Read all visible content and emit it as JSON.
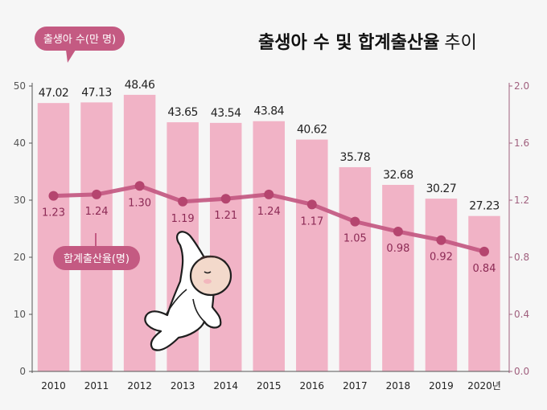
{
  "chart_data": {
    "type": "bar",
    "title": "출생아 수 및 합계출산율",
    "title_suffix": "추이",
    "categories": [
      "2010",
      "2011",
      "2012",
      "2013",
      "2014",
      "2015",
      "2016",
      "2017",
      "2018",
      "2019",
      "2020년"
    ],
    "series": [
      {
        "name": "출생아 수(만 명)",
        "type": "bar",
        "axis": "left",
        "values": [
          47.02,
          47.13,
          48.46,
          43.65,
          43.54,
          43.84,
          40.62,
          35.78,
          32.68,
          30.27,
          27.23
        ],
        "labels": [
          "47.02",
          "47.13",
          "48.46",
          "43.65",
          "43.54",
          "43.84",
          "40.62",
          "35.78",
          "32.68",
          "30.27",
          "27.23"
        ]
      },
      {
        "name": "합계출산율(명)",
        "type": "line",
        "axis": "right",
        "values": [
          1.23,
          1.24,
          1.3,
          1.19,
          1.21,
          1.24,
          1.17,
          1.05,
          0.98,
          0.92,
          0.84
        ],
        "labels": [
          "1.23",
          "1.24",
          "1.30",
          "1.19",
          "1.21",
          "1.24",
          "1.17",
          "1.05",
          "0.98",
          "0.92",
          "0.84"
        ]
      }
    ],
    "y_left": {
      "range": [
        0,
        50
      ],
      "ticks": [
        "0",
        "10",
        "20",
        "30",
        "40",
        "50"
      ]
    },
    "y_right": {
      "range": [
        0,
        2.0
      ],
      "ticks": [
        "0.0",
        "0.4",
        "0.8",
        "1.2",
        "1.6",
        "2.0"
      ]
    },
    "grid": false,
    "colors": {
      "bar": "#f1b3c6",
      "line": "#c2557f",
      "dot": "#b5456f",
      "callout": "#c45a82",
      "right_axis": "#a0607e"
    }
  }
}
